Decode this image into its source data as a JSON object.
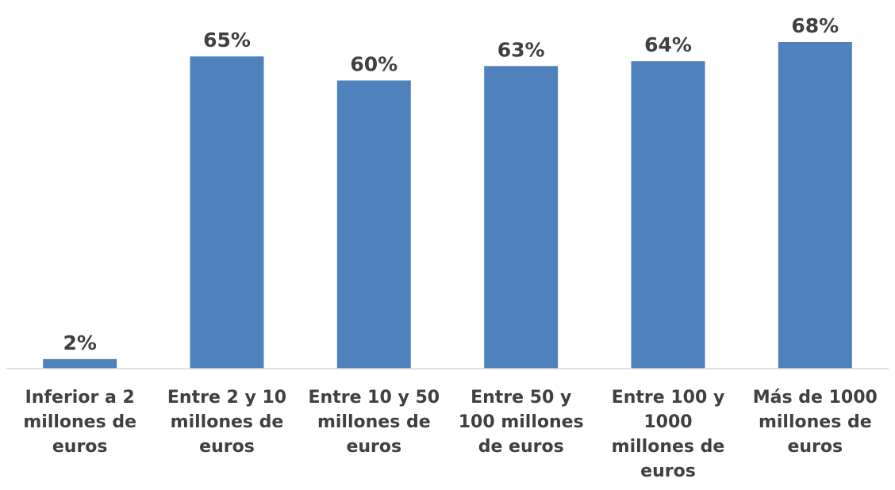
{
  "chart_data": {
    "type": "bar",
    "categories": [
      "Inferior a 2 millones de euros",
      "Entre 2 y 10 millones de euros",
      "Entre 10 y 50 millones de euros",
      "Entre 50 y 100 millones de euros",
      "Entre 100 y 1000 millones de euros",
      "Más de 1000 millones de euros"
    ],
    "category_lines": [
      [
        "Inferior a 2",
        "millones de",
        "euros"
      ],
      [
        "Entre 2 y 10",
        "millones de",
        "euros"
      ],
      [
        "Entre 10 y 50",
        "millones de",
        "euros"
      ],
      [
        "Entre 50 y",
        "100 millones",
        "de euros"
      ],
      [
        "Entre 100 y",
        "1000",
        "millones de",
        "euros"
      ],
      [
        "Más de 1000",
        "millones de",
        "euros"
      ]
    ],
    "values": [
      2,
      65,
      60,
      63,
      64,
      68
    ],
    "data_labels": [
      "2%",
      "65%",
      "60%",
      "63%",
      "64%",
      "68%"
    ],
    "unit": "%",
    "title": "",
    "xlabel": "",
    "ylabel": "",
    "ylim": [
      0,
      70
    ],
    "grid": false,
    "legend": "none",
    "colors": {
      "bar": "#4F81BD",
      "axis": "#D9D9D9",
      "text": "#404040"
    }
  }
}
